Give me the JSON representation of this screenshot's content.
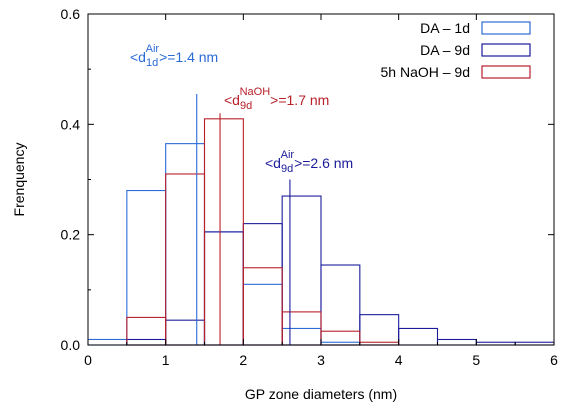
{
  "chart_data": {
    "type": "histogram",
    "xlabel": "GP zone diameters (nm)",
    "ylabel": "Frenquency",
    "xlim": [
      0,
      6
    ],
    "ylim": [
      0,
      0.6
    ],
    "xticks": [
      "0",
      "1",
      "2",
      "3",
      "4",
      "5",
      "6"
    ],
    "yticks": [
      "0.0",
      "0.2",
      "0.4",
      "0.6"
    ],
    "grid": false,
    "legend_position": "top-right",
    "series": [
      {
        "name": "DA – 1d",
        "color": "#2b6bd6",
        "bins": [
          {
            "x0": 0,
            "x1": 0.5,
            "y": 0.01
          },
          {
            "x0": 0.5,
            "x1": 1,
            "y": 0.28
          },
          {
            "x0": 1,
            "x1": 1.5,
            "y": 0.365
          },
          {
            "x0": 1.5,
            "x1": 2,
            "y": 0.205
          },
          {
            "x0": 2,
            "x1": 2.5,
            "y": 0.11
          },
          {
            "x0": 2.5,
            "x1": 3,
            "y": 0.03
          },
          {
            "x0": 3,
            "x1": 3.5,
            "y": 0.005
          }
        ]
      },
      {
        "name": "DA – 9d",
        "color": "#1c1c9a",
        "bins": [
          {
            "x0": 0.5,
            "x1": 1,
            "y": 0.01
          },
          {
            "x0": 1,
            "x1": 1.5,
            "y": 0.045
          },
          {
            "x0": 1.5,
            "x1": 2,
            "y": 0.205
          },
          {
            "x0": 2,
            "x1": 2.5,
            "y": 0.22
          },
          {
            "x0": 2.5,
            "x1": 3,
            "y": 0.27
          },
          {
            "x0": 3,
            "x1": 3.5,
            "y": 0.145
          },
          {
            "x0": 3.5,
            "x1": 4,
            "y": 0.055
          },
          {
            "x0": 4,
            "x1": 4.5,
            "y": 0.03
          },
          {
            "x0": 4.5,
            "x1": 5,
            "y": 0.01
          },
          {
            "x0": 5,
            "x1": 5.5,
            "y": 0.005
          },
          {
            "x0": 5.5,
            "x1": 6,
            "y": 0.005
          }
        ]
      },
      {
        "name": "5h NaOH – 9d",
        "color": "#b8202a",
        "bins": [
          {
            "x0": 0.5,
            "x1": 1,
            "y": 0.05
          },
          {
            "x0": 1,
            "x1": 1.5,
            "y": 0.31
          },
          {
            "x0": 1.5,
            "x1": 2,
            "y": 0.41
          },
          {
            "x0": 2,
            "x1": 2.5,
            "y": 0.14
          },
          {
            "x0": 2.5,
            "x1": 3,
            "y": 0.06
          },
          {
            "x0": 3,
            "x1": 3.5,
            "y": 0.025
          },
          {
            "x0": 3.5,
            "x1": 4,
            "y": 0.005
          }
        ]
      }
    ],
    "annotations": [
      {
        "id": "air-1d",
        "prefix": "<d",
        "sub": "1d",
        "sup": "Air",
        "suffix": ">=1.4 nm",
        "x": 1.4,
        "line_to": 0.455,
        "color": "#2b6bd6"
      },
      {
        "id": "naoh-9d",
        "prefix": "<d",
        "sub": "9d",
        "sup": "NaOH",
        "suffix": ">=1.7 nm",
        "x": 1.7,
        "line_to": 0.42,
        "color": "#b8202a"
      },
      {
        "id": "air-9d",
        "prefix": "<d",
        "sub": "9d",
        "sup": "Air",
        "suffix": ">=2.6 nm",
        "x": 2.6,
        "line_to": 0.3,
        "color": "#1c1c9a"
      }
    ]
  }
}
